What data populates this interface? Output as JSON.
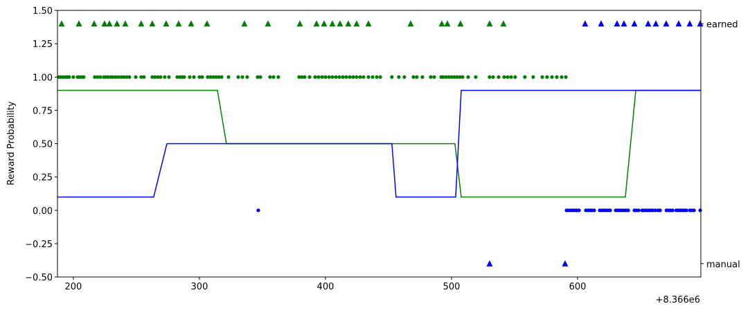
{
  "chart_data": {
    "type": "line",
    "y_label": "Reward Probability",
    "x_offset_label": "+8.366e6",
    "xlim": [
      187.4,
      697.8
    ],
    "ylim": [
      -0.5,
      1.5
    ],
    "xticks": [
      200,
      300,
      400,
      500,
      600
    ],
    "yticks": [
      {
        "value": -0.5,
        "label": "−0.50"
      },
      {
        "value": -0.25,
        "label": "−0.25"
      },
      {
        "value": 0,
        "label": "0.00"
      },
      {
        "value": 0.25,
        "label": "0.25"
      },
      {
        "value": 0.5,
        "label": "0.50"
      },
      {
        "value": 0.75,
        "label": "0.75"
      },
      {
        "value": 1,
        "label": "1.00"
      },
      {
        "value": 1.25,
        "label": "1.25"
      },
      {
        "value": 1.5,
        "label": "1.50"
      }
    ],
    "y2ticks": [
      {
        "value": 1.4,
        "label": "earned"
      },
      {
        "value": -0.4,
        "label": "manual"
      }
    ],
    "series": [
      {
        "type": "line",
        "color": "#008000",
        "x": [
          187.4,
          314.3,
          321.4,
          502.7,
          507.7,
          637.9,
          646.2,
          697.8
        ],
        "values": [
          0.9,
          0.9,
          0.5,
          0.5,
          0.1,
          0.1,
          0.9,
          0.9
        ]
      },
      {
        "type": "line",
        "color": "#0000ff",
        "x": [
          187.4,
          263.7,
          274.2,
          452.7,
          456,
          503.3,
          507.7,
          697.8
        ],
        "values": [
          0.1,
          0.1,
          0.5,
          0.5,
          0.1,
          0.1,
          0.9,
          0.9
        ]
      },
      {
        "type": "scatter",
        "marker": "circle",
        "color": "#008000",
        "x": [
          188.5,
          190.1,
          191.8,
          193.4,
          195.1,
          196.7,
          200,
          203.3,
          204.9,
          206.6,
          208.2,
          217.0,
          219.2,
          221.4,
          224.2,
          225.8,
          227.5,
          229.7,
          231.3,
          233.5,
          235.7,
          237.9,
          240.1,
          242.3,
          244.5,
          249.5,
          253.8,
          256.0,
          262.6,
          264.8,
          267.0,
          269.2,
          272.5,
          275.8,
          282.4,
          284.6,
          286.3,
          287.9,
          292.3,
          295.6,
          300.0,
          302.2,
          306.6,
          308.8,
          311.0,
          313.2,
          315.4,
          317.6,
          323.1,
          330.8,
          334.1,
          337.9,
          346.2,
          348.4,
          356.0,
          358.8,
          362.6,
          379.1,
          381.3,
          383.5,
          387.4,
          391.8,
          394.5,
          397.3,
          400.0,
          402.8,
          405.5,
          408.3,
          411.0,
          413.8,
          416.5,
          419.3,
          422.0,
          424.7,
          427.5,
          430.2,
          434.1,
          437.4,
          440.7,
          443.5,
          452.7,
          458.2,
          462.6,
          469.8,
          472.5,
          476.9,
          483.5,
          486.3,
          491.8,
          493.4,
          495.6,
          497.8,
          500.0,
          502.2,
          504.4,
          506.6,
          508.8,
          513.2,
          519.2,
          530.2,
          533.0,
          537.4,
          541.8,
          544.5,
          547.3,
          550.5,
          558.2,
          564.8,
          572.0,
          575.8,
          579.7,
          583.5,
          587.4,
          590.7
        ],
        "values": [
          1,
          1,
          1,
          1,
          1,
          1,
          1,
          1,
          1,
          1,
          1,
          1,
          1,
          1,
          1,
          1,
          1,
          1,
          1,
          1,
          1,
          1,
          1,
          1,
          1,
          1,
          1,
          1,
          1,
          1,
          1,
          1,
          1,
          1,
          1,
          1,
          1,
          1,
          1,
          1,
          1,
          1,
          1,
          1,
          1,
          1,
          1,
          1,
          1,
          1,
          1,
          1,
          1,
          1,
          1,
          1,
          1,
          1,
          1,
          1,
          1,
          1,
          1,
          1,
          1,
          1,
          1,
          1,
          1,
          1,
          1,
          1,
          1,
          1,
          1,
          1,
          1,
          1,
          1,
          1,
          1,
          1,
          1,
          1,
          1,
          1,
          1,
          1,
          1,
          1,
          1,
          1,
          1,
          1,
          1,
          1,
          1,
          1,
          1,
          1,
          1,
          1,
          1,
          1,
          1,
          1,
          1,
          1,
          1,
          1,
          1,
          1,
          1,
          1
        ]
      },
      {
        "type": "scatter",
        "marker": "triangle",
        "color": "#008000",
        "x": [
          190.7,
          204.4,
          216.5,
          224.7,
          228.6,
          234.6,
          241.2,
          253.8,
          262.6,
          273.6,
          283.5,
          293.4,
          306.0,
          335.7,
          354.4,
          379.7,
          392.9,
          398.9,
          405.5,
          411.5,
          418.1,
          424.7,
          434.1,
          467.6,
          492.3,
          496.7,
          507.1,
          530.2,
          541.2
        ],
        "values": [
          1.4,
          1.4,
          1.4,
          1.4,
          1.4,
          1.4,
          1.4,
          1.4,
          1.4,
          1.4,
          1.4,
          1.4,
          1.4,
          1.4,
          1.4,
          1.4,
          1.4,
          1.4,
          1.4,
          1.4,
          1.4,
          1.4,
          1.4,
          1.4,
          1.4,
          1.4,
          1.4,
          1.4,
          1.4
        ]
      },
      {
        "type": "scatter",
        "marker": "circle",
        "color": "#0000ff",
        "x": [
          346.7,
          591.3,
          592.9,
          594.6,
          596.2,
          597.9,
          599.5,
          601.2,
          606.6,
          608.3,
          609.9,
          611.6,
          613.2,
          617.6,
          619.3,
          620.9,
          622.6,
          624.2,
          625.9,
          630.3,
          631.9,
          633.6,
          635.2,
          636.9,
          638.5,
          640.2,
          645.1,
          646.8,
          648.4,
          651.2,
          652.9,
          654.5,
          656.2,
          657.8,
          659.5,
          661.7,
          663.9,
          665.5,
          670.5,
          672.1,
          673.8,
          675.4,
          678.2,
          679.8,
          681.5,
          683.1,
          684.8,
          686.4,
          689.1,
          690.7,
          692.4,
          697.3
        ],
        "values": [
          0,
          0,
          0,
          0,
          0,
          0,
          0,
          0,
          0,
          0,
          0,
          0,
          0,
          0,
          0,
          0,
          0,
          0,
          0,
          0,
          0,
          0,
          0,
          0,
          0,
          0,
          0,
          0,
          0,
          0,
          0,
          0,
          0,
          0,
          0,
          0,
          0,
          0,
          0,
          0,
          0,
          0,
          0,
          0,
          0,
          0,
          0,
          0,
          0,
          0,
          0,
          0
        ]
      },
      {
        "type": "scatter",
        "marker": "triangle",
        "color": "#0000ff",
        "x": [
          606.0,
          618.7,
          631.3,
          636.8,
          645.1,
          656.0,
          662.1,
          670.3,
          680.2,
          689.0,
          697.3,
          530.2,
          590.1
        ],
        "values": [
          1.4,
          1.4,
          1.4,
          1.4,
          1.4,
          1.4,
          1.4,
          1.4,
          1.4,
          1.4,
          1.4,
          -0.4,
          -0.4
        ]
      }
    ]
  }
}
